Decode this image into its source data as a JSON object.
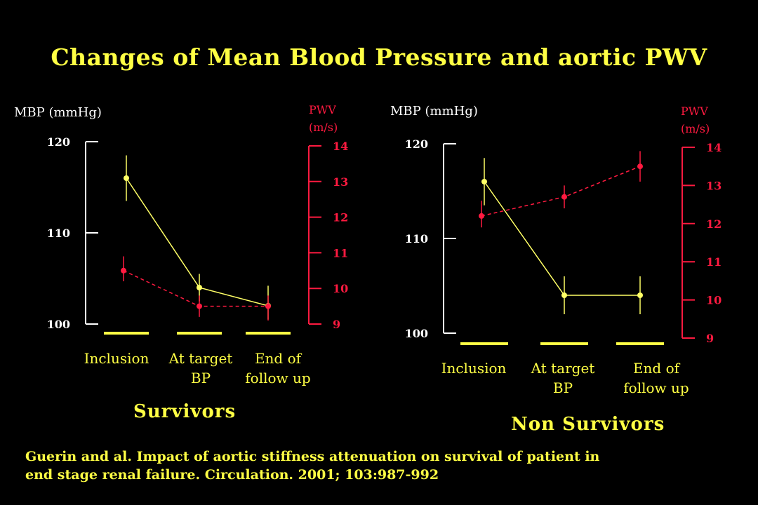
{
  "title": "Changes of Mean Blood Pressure and aortic PWV",
  "citation": {
    "line1": "Guerin and al. Impact of aortic stiffness attenuation on survival of patient in",
    "line2": "end stage renal failure. Circulation. 2001; 103:987-992"
  },
  "colors": {
    "mbp": "#ffff66",
    "pwv": "#ff1a40",
    "axis_left": "#ffffff",
    "axis_right": "#ff1a40",
    "text": "#ffff44"
  },
  "chart_data": [
    {
      "type": "line",
      "group_label": "Survivors",
      "categories": [
        "Inclusion",
        "At target BP",
        "End of follow up"
      ],
      "category_lines": [
        [
          "Inclusion"
        ],
        [
          "At target",
          "BP"
        ],
        [
          "End of",
          "follow up"
        ]
      ],
      "left_axis": {
        "label": "MBP (mmHg)",
        "range": [
          100,
          120
        ],
        "ticks": [
          "100",
          "110",
          "120"
        ]
      },
      "right_axis": {
        "label_lines": [
          "PWV",
          "(m/s)"
        ],
        "range": [
          9,
          14
        ],
        "ticks": [
          "9",
          "10",
          "11",
          "12",
          "13",
          "14"
        ]
      },
      "series": [
        {
          "axis": "left",
          "values": [
            116,
            104,
            102
          ],
          "err_low": [
            113.5,
            102.5,
            100.5
          ],
          "err_high": [
            118.5,
            105.5,
            104.2
          ]
        },
        {
          "axis": "right",
          "values": [
            10.5,
            9.5,
            9.5
          ],
          "err_low": [
            10.2,
            9.2,
            9.1
          ],
          "err_high": [
            10.9,
            9.8,
            9.8
          ]
        }
      ]
    },
    {
      "type": "line",
      "group_label": "Non Survivors",
      "categories": [
        "Inclusion",
        "At target BP",
        "End of follow up"
      ],
      "category_lines": [
        [
          "Inclusion"
        ],
        [
          "At target",
          "BP"
        ],
        [
          "End of",
          "follow up"
        ]
      ],
      "left_axis": {
        "label": "MBP (mmHg)",
        "range": [
          100,
          120
        ],
        "ticks": [
          "100",
          "110",
          "120"
        ]
      },
      "right_axis": {
        "label_lines": [
          "PWV",
          "(m/s)"
        ],
        "range": [
          9,
          14
        ],
        "ticks": [
          "9",
          "10",
          "11",
          "12",
          "13",
          "14"
        ]
      },
      "series": [
        {
          "axis": "left",
          "values": [
            116,
            104,
            104
          ],
          "err_low": [
            113.5,
            102,
            102
          ],
          "err_high": [
            118.5,
            106,
            106
          ]
        },
        {
          "axis": "right",
          "values": [
            12.2,
            12.7,
            13.5
          ],
          "err_low": [
            11.9,
            12.4,
            13.1
          ],
          "err_high": [
            12.6,
            13.0,
            13.9
          ]
        }
      ]
    }
  ]
}
